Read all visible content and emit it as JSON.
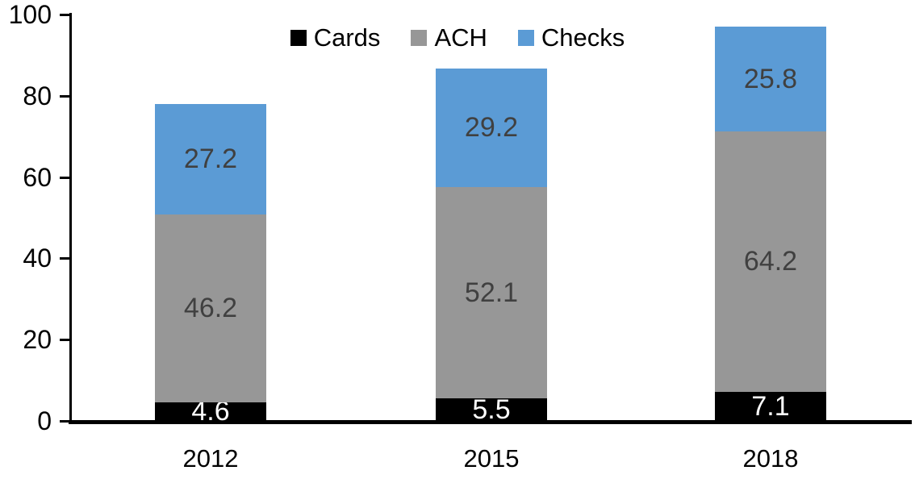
{
  "chart_data": {
    "type": "bar",
    "stacked": true,
    "title": "",
    "xlabel": "",
    "ylabel": "",
    "categories": [
      "2012",
      "2015",
      "2018"
    ],
    "series": [
      {
        "name": "Cards",
        "values": [
          4.6,
          5.5,
          7.1
        ],
        "color": "#000000",
        "label_color": "#ffffff"
      },
      {
        "name": "ACH",
        "values": [
          46.2,
          52.1,
          64.2
        ],
        "color": "#979797",
        "label_color": "#404040"
      },
      {
        "name": "Checks",
        "values": [
          27.2,
          29.2,
          25.8
        ],
        "color": "#5b9bd5",
        "label_color": "#404040"
      }
    ],
    "totals": [
      78.0,
      86.8,
      97.1
    ],
    "ylim": [
      0,
      100
    ],
    "yticks": [
      0,
      20,
      40,
      60,
      80,
      100
    ],
    "grid": false,
    "legend_position": "top-center",
    "axis_color": "#000000",
    "background_color": "#ffffff"
  }
}
